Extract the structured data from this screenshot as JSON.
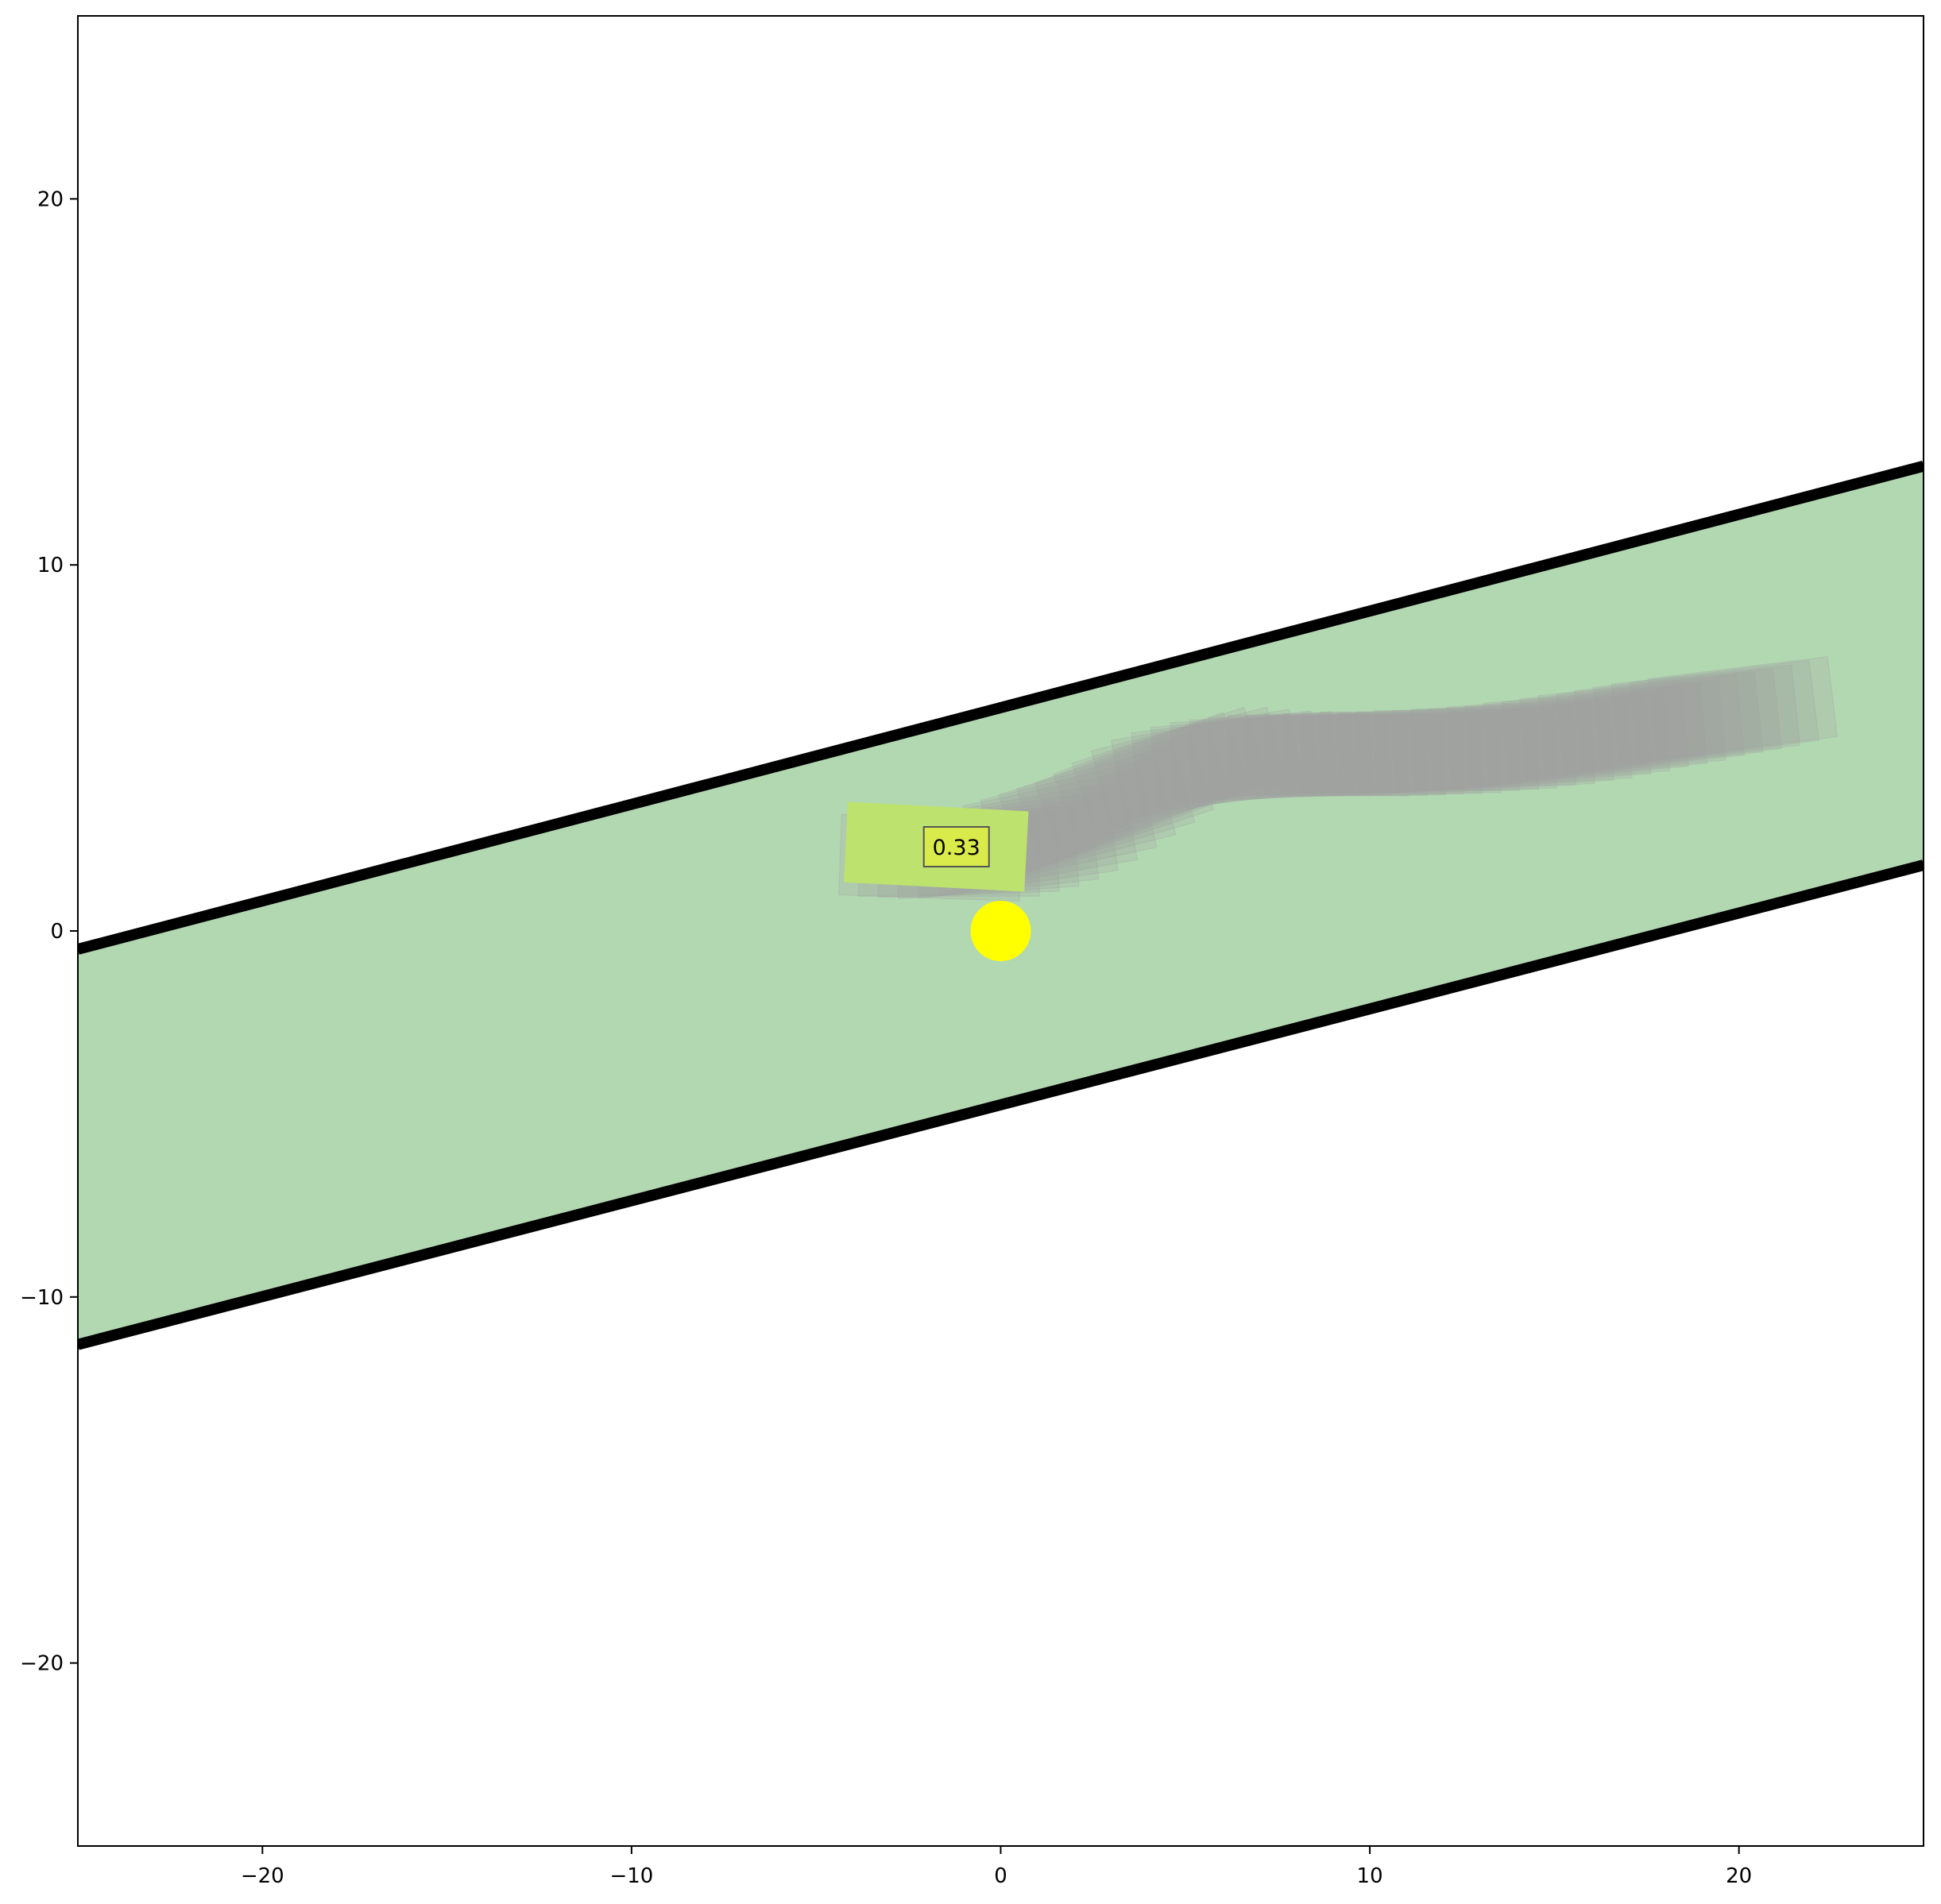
{
  "chart_data": {
    "type": "scatter",
    "title": "",
    "xlabel": "",
    "ylabel": "",
    "xlim": [
      -25,
      25
    ],
    "ylim": [
      -25,
      25
    ],
    "grid": false,
    "x_ticks": [
      -20,
      -10,
      0,
      10,
      20
    ],
    "y_ticks": [
      -20,
      -10,
      0,
      10,
      20
    ],
    "x_tick_labels": [
      "−20",
      "−10",
      "0",
      "10",
      "20"
    ],
    "y_tick_labels": [
      "−20",
      "−10",
      "0",
      "10",
      "20"
    ],
    "lane": {
      "color": "#b2d8b2",
      "boundary_color": "#000000",
      "upper_boundary": [
        [
          -25,
          -0.5
        ],
        [
          25,
          12.7
        ]
      ],
      "lower_boundary": [
        [
          -25,
          -11.3
        ],
        [
          25,
          1.8
        ]
      ]
    },
    "trajectory": {
      "color": "#a0a0a0",
      "poses": [
        [
          -1.9,
          2.0,
          -2
        ],
        [
          -1.4,
          2.05,
          0
        ],
        [
          -0.9,
          2.1,
          2
        ],
        [
          -0.4,
          2.15,
          4
        ],
        [
          0.1,
          2.25,
          6
        ],
        [
          0.6,
          2.4,
          8
        ],
        [
          1.1,
          2.6,
          10
        ],
        [
          1.6,
          2.85,
          12
        ],
        [
          2.1,
          3.1,
          14
        ],
        [
          2.6,
          3.35,
          16
        ],
        [
          3.1,
          3.6,
          18
        ],
        [
          3.6,
          3.85,
          20
        ],
        [
          4.1,
          4.1,
          20
        ],
        [
          4.6,
          4.3,
          18
        ],
        [
          5.1,
          4.45,
          14
        ],
        [
          5.6,
          4.55,
          10
        ],
        [
          6.1,
          4.62,
          7
        ],
        [
          6.6,
          4.68,
          5
        ],
        [
          7.1,
          4.72,
          3
        ],
        [
          7.6,
          4.75,
          2
        ],
        [
          8.1,
          4.77,
          1
        ],
        [
          8.6,
          4.79,
          0
        ],
        [
          9.1,
          4.8,
          0
        ],
        [
          9.6,
          4.82,
          0
        ],
        [
          10.1,
          4.84,
          0
        ],
        [
          10.6,
          4.86,
          0
        ],
        [
          11.1,
          4.88,
          0
        ],
        [
          11.6,
          4.9,
          1
        ],
        [
          12.1,
          4.93,
          1
        ],
        [
          12.6,
          4.96,
          1
        ],
        [
          13.1,
          5.0,
          2
        ],
        [
          13.6,
          5.04,
          2
        ],
        [
          14.1,
          5.09,
          3
        ],
        [
          14.6,
          5.15,
          3
        ],
        [
          15.1,
          5.22,
          4
        ],
        [
          15.6,
          5.3,
          4
        ],
        [
          16.1,
          5.38,
          5
        ],
        [
          16.6,
          5.46,
          5
        ],
        [
          17.1,
          5.55,
          5
        ],
        [
          17.6,
          5.64,
          6
        ],
        [
          18.1,
          5.73,
          6
        ],
        [
          18.6,
          5.82,
          6
        ],
        [
          19.1,
          5.91,
          6
        ],
        [
          19.6,
          6.0,
          7
        ],
        [
          20.1,
          6.1,
          7
        ]
      ]
    },
    "ego_vehicle": {
      "x": -1.75,
      "y": 2.3,
      "heading_deg": -3,
      "length": 4.9,
      "width": 2.2,
      "color": "#bde26e",
      "score": "0.33",
      "score_box_color": "#d9eb4a"
    },
    "target_point": {
      "x": 0,
      "y": 0,
      "color": "#ffff00"
    }
  }
}
